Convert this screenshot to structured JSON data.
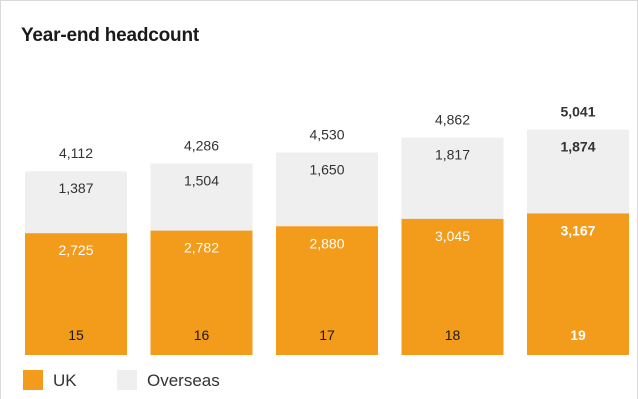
{
  "chart_data": {
    "type": "bar",
    "stacked": true,
    "title": "Year-end headcount",
    "categories": [
      "15",
      "16",
      "17",
      "18",
      "19"
    ],
    "series": [
      {
        "name": "UK",
        "values": [
          2725,
          2782,
          2880,
          3045,
          3167
        ]
      },
      {
        "name": "Overseas",
        "values": [
          1387,
          1504,
          1650,
          1817,
          1874
        ]
      }
    ],
    "totals": [
      4112,
      4286,
      4530,
      4862,
      5041
    ],
    "value_labels": {
      "uk": [
        "2,725",
        "2,782",
        "2,880",
        "3,045",
        "3,167"
      ],
      "overseas": [
        "1,387",
        "1,504",
        "1,650",
        "1,817",
        "1,874"
      ],
      "totals": [
        "4,112",
        "4,286",
        "4,530",
        "4,862",
        "5,041"
      ]
    },
    "highlight_index": 4,
    "colors": {
      "uk": "#f39b1b",
      "overseas": "#efefef",
      "text_dark": "#333333",
      "text_light": "#ffffff"
    },
    "legend": [
      "UK",
      "Overseas"
    ],
    "legend_position": "bottom-left",
    "grid": false
  }
}
